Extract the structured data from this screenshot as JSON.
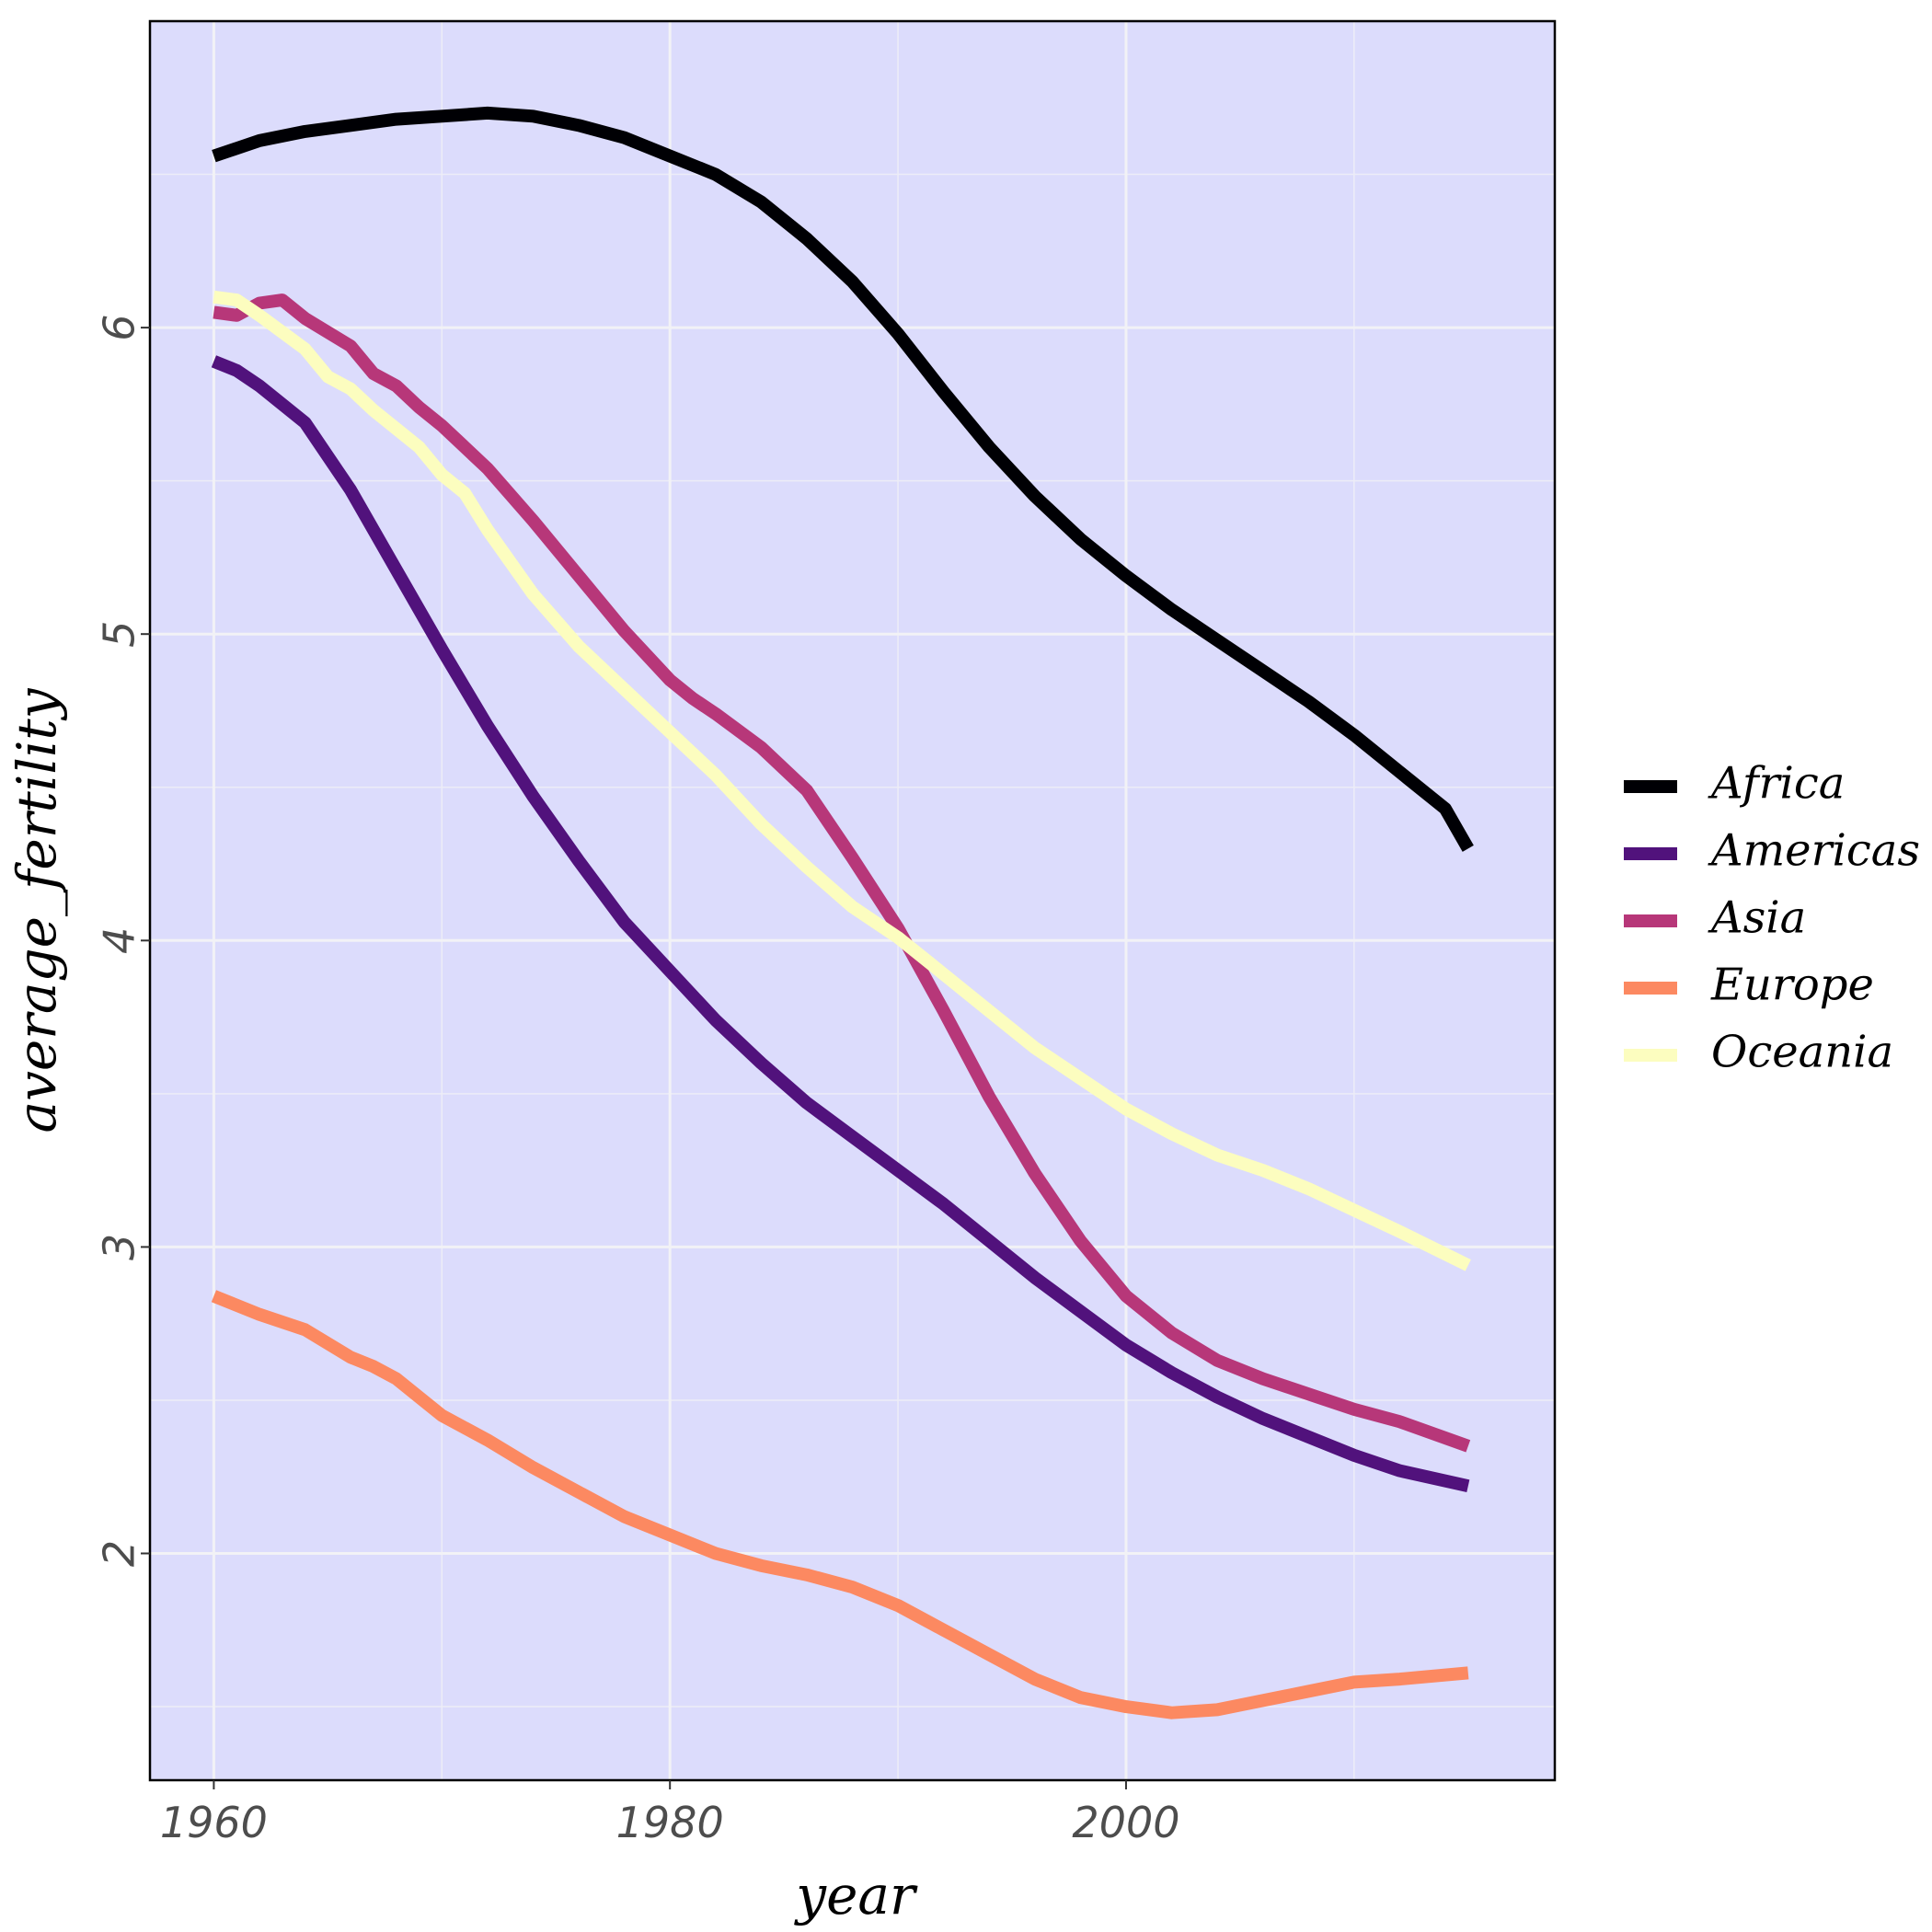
{
  "chart_data": {
    "type": "line",
    "title": "",
    "xlabel": "year",
    "ylabel": "average_fertility",
    "xlim": [
      1957.2,
      2018.8
    ],
    "ylim": [
      1.26,
      7.0
    ],
    "x_ticks": [
      1960,
      1980,
      2000
    ],
    "y_ticks": [
      2,
      3,
      4,
      5,
      6
    ],
    "grid": true,
    "legend_position": "right",
    "panel_background": "#dcdcfc",
    "series": [
      {
        "name": "Africa",
        "color": "#000004",
        "points": [
          [
            1960,
            6.56
          ],
          [
            1962,
            6.61
          ],
          [
            1964,
            6.64
          ],
          [
            1966,
            6.66
          ],
          [
            1968,
            6.68
          ],
          [
            1970,
            6.69
          ],
          [
            1972,
            6.7
          ],
          [
            1974,
            6.69
          ],
          [
            1976,
            6.66
          ],
          [
            1978,
            6.62
          ],
          [
            1980,
            6.56
          ],
          [
            1982,
            6.5
          ],
          [
            1984,
            6.41
          ],
          [
            1986,
            6.29
          ],
          [
            1988,
            6.15
          ],
          [
            1990,
            5.98
          ],
          [
            1992,
            5.79
          ],
          [
            1994,
            5.61
          ],
          [
            1996,
            5.45
          ],
          [
            1998,
            5.31
          ],
          [
            2000,
            5.19
          ],
          [
            2002,
            5.08
          ],
          [
            2004,
            4.98
          ],
          [
            2006,
            4.88
          ],
          [
            2008,
            4.78
          ],
          [
            2010,
            4.67
          ],
          [
            2012,
            4.55
          ],
          [
            2014,
            4.43
          ],
          [
            2015,
            4.3
          ]
        ]
      },
      {
        "name": "Americas",
        "color": "#51127c",
        "points": [
          [
            1960,
            5.89
          ],
          [
            1961,
            5.86
          ],
          [
            1962,
            5.81
          ],
          [
            1964,
            5.69
          ],
          [
            1966,
            5.47
          ],
          [
            1968,
            5.21
          ],
          [
            1970,
            4.95
          ],
          [
            1972,
            4.7
          ],
          [
            1974,
            4.47
          ],
          [
            1976,
            4.26
          ],
          [
            1978,
            4.06
          ],
          [
            1980,
            3.9
          ],
          [
            1982,
            3.74
          ],
          [
            1984,
            3.6
          ],
          [
            1986,
            3.47
          ],
          [
            1988,
            3.36
          ],
          [
            1990,
            3.25
          ],
          [
            1992,
            3.14
          ],
          [
            1994,
            3.02
          ],
          [
            1996,
            2.9
          ],
          [
            1998,
            2.79
          ],
          [
            2000,
            2.68
          ],
          [
            2002,
            2.59
          ],
          [
            2004,
            2.51
          ],
          [
            2006,
            2.44
          ],
          [
            2008,
            2.38
          ],
          [
            2010,
            2.32
          ],
          [
            2012,
            2.27
          ],
          [
            2015,
            2.22
          ]
        ]
      },
      {
        "name": "Asia",
        "color": "#b73779",
        "points": [
          [
            1960,
            6.05
          ],
          [
            1961,
            6.04
          ],
          [
            1962,
            6.08
          ],
          [
            1963,
            6.09
          ],
          [
            1964,
            6.03
          ],
          [
            1966,
            5.94
          ],
          [
            1967,
            5.85
          ],
          [
            1968,
            5.81
          ],
          [
            1969,
            5.74
          ],
          [
            1970,
            5.68
          ],
          [
            1972,
            5.54
          ],
          [
            1974,
            5.37
          ],
          [
            1976,
            5.19
          ],
          [
            1978,
            5.01
          ],
          [
            1980,
            4.85
          ],
          [
            1981,
            4.79
          ],
          [
            1982,
            4.74
          ],
          [
            1984,
            4.63
          ],
          [
            1986,
            4.49
          ],
          [
            1988,
            4.27
          ],
          [
            1990,
            4.04
          ],
          [
            1992,
            3.77
          ],
          [
            1994,
            3.49
          ],
          [
            1996,
            3.24
          ],
          [
            1998,
            3.02
          ],
          [
            2000,
            2.84
          ],
          [
            2002,
            2.72
          ],
          [
            2004,
            2.63
          ],
          [
            2006,
            2.57
          ],
          [
            2008,
            2.52
          ],
          [
            2010,
            2.47
          ],
          [
            2012,
            2.43
          ],
          [
            2015,
            2.35
          ]
        ]
      },
      {
        "name": "Europe",
        "color": "#fc8961",
        "points": [
          [
            1960,
            2.84
          ],
          [
            1961,
            2.81
          ],
          [
            1962,
            2.78
          ],
          [
            1964,
            2.73
          ],
          [
            1966,
            2.64
          ],
          [
            1967,
            2.61
          ],
          [
            1968,
            2.57
          ],
          [
            1970,
            2.45
          ],
          [
            1972,
            2.37
          ],
          [
            1974,
            2.28
          ],
          [
            1976,
            2.2
          ],
          [
            1978,
            2.12
          ],
          [
            1980,
            2.06
          ],
          [
            1982,
            2.0
          ],
          [
            1984,
            1.96
          ],
          [
            1986,
            1.93
          ],
          [
            1988,
            1.89
          ],
          [
            1990,
            1.83
          ],
          [
            1992,
            1.75
          ],
          [
            1994,
            1.67
          ],
          [
            1996,
            1.59
          ],
          [
            1998,
            1.53
          ],
          [
            2000,
            1.5
          ],
          [
            2002,
            1.48
          ],
          [
            2004,
            1.49
          ],
          [
            2006,
            1.52
          ],
          [
            2008,
            1.55
          ],
          [
            2010,
            1.58
          ],
          [
            2012,
            1.59
          ],
          [
            2015,
            1.61
          ]
        ]
      },
      {
        "name": "Oceania",
        "color": "#fcfdbf",
        "points": [
          [
            1960,
            6.1
          ],
          [
            1961,
            6.09
          ],
          [
            1962,
            6.04
          ],
          [
            1964,
            5.93
          ],
          [
            1965,
            5.84
          ],
          [
            1966,
            5.8
          ],
          [
            1967,
            5.73
          ],
          [
            1968,
            5.67
          ],
          [
            1969,
            5.61
          ],
          [
            1970,
            5.52
          ],
          [
            1971,
            5.46
          ],
          [
            1972,
            5.34
          ],
          [
            1974,
            5.13
          ],
          [
            1976,
            4.96
          ],
          [
            1978,
            4.82
          ],
          [
            1980,
            4.68
          ],
          [
            1982,
            4.54
          ],
          [
            1984,
            4.38
          ],
          [
            1986,
            4.24
          ],
          [
            1988,
            4.11
          ],
          [
            1990,
            4.01
          ],
          [
            1992,
            3.89
          ],
          [
            1994,
            3.77
          ],
          [
            1996,
            3.65
          ],
          [
            1998,
            3.55
          ],
          [
            2000,
            3.45
          ],
          [
            2002,
            3.37
          ],
          [
            2004,
            3.3
          ],
          [
            2006,
            3.25
          ],
          [
            2008,
            3.19
          ],
          [
            2010,
            3.12
          ],
          [
            2012,
            3.05
          ],
          [
            2015,
            2.94
          ]
        ]
      }
    ]
  }
}
